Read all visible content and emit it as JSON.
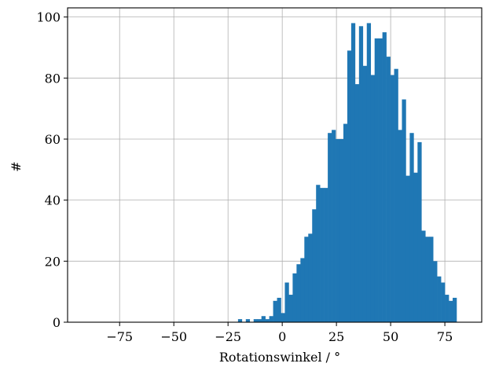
{
  "chart_data": {
    "type": "bar",
    "subtype": "histogram",
    "xlabel": "Rotationswinkel / °",
    "ylabel": "#",
    "xlim": [
      -99,
      92
    ],
    "ylim": [
      0,
      103
    ],
    "grid": true,
    "bar_color": "#1f77b4",
    "bin_width": 1.8,
    "bin_start": -20.4,
    "x_ticks": [
      -75,
      -50,
      -25,
      0,
      25,
      50,
      75
    ],
    "x_tick_labels": [
      "−75",
      "−50",
      "−25",
      "0",
      "25",
      "50",
      "75"
    ],
    "y_ticks": [
      0,
      20,
      40,
      60,
      80,
      100
    ],
    "y_tick_labels": [
      "0",
      "20",
      "40",
      "60",
      "80",
      "100"
    ],
    "values": [
      1,
      0,
      1,
      0,
      1,
      1,
      2,
      1,
      2,
      7,
      8,
      3,
      13,
      9,
      16,
      19,
      21,
      28,
      29,
      37,
      45,
      44,
      44,
      62,
      63,
      60,
      60,
      65,
      89,
      98,
      78,
      97,
      84,
      98,
      81,
      93,
      93,
      95,
      87,
      81,
      83,
      63,
      73,
      48,
      62,
      49,
      59,
      30,
      28,
      28,
      20,
      15,
      13,
      9,
      7,
      8
    ]
  }
}
